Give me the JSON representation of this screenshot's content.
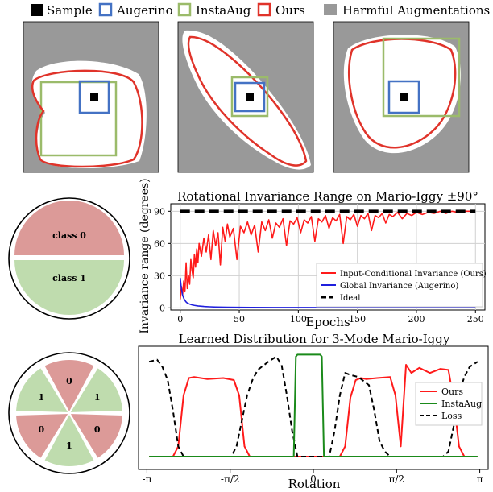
{
  "legend_top": {
    "items": [
      {
        "label": "Sample",
        "color": "#000000",
        "style": "filled-square"
      },
      {
        "label": "Augerino",
        "color": "#4472c4",
        "style": "outline-square"
      },
      {
        "label": "InstaAug",
        "color": "#9bbb6a",
        "style": "outline-square"
      },
      {
        "label": "Ours",
        "color": "#e0332a",
        "style": "outline-square"
      },
      {
        "label": "Harmful Augmentations",
        "color": "#999999",
        "style": "filled-square"
      }
    ]
  },
  "colors": {
    "harmful": "#999999",
    "ours": "#e0332a",
    "augerino": "#4472c4",
    "instaaug": "#9bbb6a",
    "class0": "#dc9a98",
    "class1": "#bfdcae",
    "instaaug_dist": "#1a8a1a",
    "augerino_curve": "#1f1fdd",
    "ours_curve": "#ff1a1a"
  },
  "pie_two_class": {
    "labels": [
      "class 0",
      "class 1"
    ]
  },
  "pie_six_sector": {
    "labels": [
      "0",
      "1",
      "0",
      "1",
      "0",
      "1"
    ]
  },
  "chart_data": [
    {
      "type": "line",
      "title": "Rotational Invariance Range on Mario-Iggy ±90°",
      "xlabel": "Epochs",
      "ylabel": "Invariance range (degrees)",
      "xlim": [
        -8,
        258
      ],
      "ylim": [
        -2,
        97
      ],
      "xticks": [
        0,
        50,
        100,
        150,
        200,
        250
      ],
      "yticks": [
        0,
        30,
        60,
        90
      ],
      "grid": true,
      "legend_position": "bottom-right",
      "series": [
        {
          "name": "Input-Conditional Invariance (Ours)",
          "color": "#ff1a1a",
          "x": [
            0,
            1,
            2,
            3,
            4,
            5,
            6,
            7,
            8,
            9,
            10,
            11,
            12,
            13,
            14,
            15,
            16,
            18,
            20,
            22,
            24,
            26,
            28,
            30,
            32,
            34,
            36,
            38,
            40,
            42,
            45,
            48,
            51,
            54,
            57,
            60,
            63,
            66,
            69,
            72,
            75,
            78,
            81,
            84,
            87,
            90,
            93,
            96,
            99,
            102,
            105,
            108,
            111,
            114,
            117,
            120,
            123,
            126,
            129,
            132,
            135,
            138,
            141,
            144,
            147,
            150,
            153,
            156,
            159,
            162,
            165,
            168,
            171,
            174,
            177,
            180,
            184,
            188,
            192,
            196,
            200,
            205,
            210,
            215,
            220,
            225,
            230,
            235,
            240,
            245,
            249
          ],
          "values": [
            8,
            20,
            12,
            25,
            15,
            42,
            18,
            30,
            22,
            45,
            35,
            28,
            50,
            38,
            55,
            42,
            60,
            48,
            65,
            52,
            68,
            45,
            72,
            58,
            70,
            40,
            75,
            62,
            78,
            66,
            74,
            45,
            76,
            70,
            80,
            68,
            77,
            52,
            80,
            72,
            82,
            65,
            79,
            75,
            83,
            58,
            81,
            78,
            84,
            70,
            82,
            79,
            85,
            62,
            83,
            80,
            86,
            74,
            84,
            81,
            87,
            60,
            85,
            82,
            87,
            76,
            86,
            83,
            88,
            72,
            86,
            84,
            88,
            79,
            87,
            85,
            89,
            83,
            88,
            86,
            89,
            87,
            89,
            88,
            90,
            88,
            90,
            89,
            90,
            90,
            90
          ]
        },
        {
          "name": "Global Invariance (Augerino)",
          "color": "#1f1fdd",
          "x": [
            0,
            1,
            2,
            3,
            4,
            5,
            6,
            8,
            10,
            12,
            15,
            20,
            25,
            30,
            40,
            50,
            60,
            80,
            100,
            150,
            200,
            250
          ],
          "values": [
            28,
            18,
            12,
            9,
            7,
            5.5,
            4.5,
            3.5,
            2.8,
            2.3,
            1.8,
            1.3,
            1.0,
            0.8,
            0.6,
            0.5,
            0.4,
            0.3,
            0.3,
            0.2,
            0.2,
            0.2
          ]
        },
        {
          "name": "Ideal",
          "color": "#000000",
          "dashed": true,
          "x": [
            0,
            250
          ],
          "values": [
            90,
            90
          ]
        }
      ]
    },
    {
      "type": "line",
      "title": "Learned Distribution for 3-Mode Mario-Iggy",
      "xlabel": "Rotation",
      "ylabel": "",
      "xlim": [
        -3.3,
        3.3
      ],
      "ylim": [
        0,
        1.05
      ],
      "xticks": [
        -3.14159,
        -1.5708,
        0,
        1.5708,
        3.14159
      ],
      "xtick_labels": [
        "-π",
        "-π/2",
        "0",
        "π/2",
        "π"
      ],
      "legend_position": "right",
      "series": [
        {
          "name": "Ours",
          "color": "#ff1a1a",
          "x": [
            -3.1,
            -2.65,
            -2.55,
            -2.45,
            -2.35,
            -2.25,
            -2.0,
            -1.7,
            -1.5,
            -1.4,
            -1.3,
            -1.2,
            -1.1,
            -1.0,
            0.0,
            0.0,
            0.0,
            0.3,
            0.5,
            0.6,
            0.7,
            0.8,
            0.9,
            1.0,
            1.2,
            1.45,
            1.55,
            1.65,
            1.75,
            1.85,
            2.0,
            2.2,
            2.4,
            2.55,
            2.65,
            2.75,
            2.85,
            3.1
          ],
          "values": [
            0.0,
            0.0,
            0.1,
            0.6,
            0.77,
            0.78,
            0.76,
            0.77,
            0.75,
            0.6,
            0.1,
            0.0,
            0.0,
            0.0,
            0.0,
            0.0,
            0.0,
            0.0,
            0.0,
            0.1,
            0.58,
            0.75,
            0.77,
            0.76,
            0.77,
            0.78,
            0.6,
            0.1,
            0.9,
            0.82,
            0.87,
            0.82,
            0.86,
            0.85,
            0.55,
            0.1,
            0.0,
            0.0
          ]
        },
        {
          "name": "InstaAug",
          "color": "#1a8a1a",
          "x": [
            -3.1,
            -0.35,
            -0.3,
            -0.25,
            0.15,
            0.2,
            0.25,
            3.1
          ],
          "values": [
            0.0,
            0.0,
            1.0,
            1.0,
            1.0,
            1.0,
            0.0,
            0.0
          ],
          "raw_x": [
            -3.1,
            -0.37,
            -0.33,
            -0.3,
            0.13,
            0.16,
            0.2,
            3.1
          ],
          "raw_values": [
            0.0,
            0.0,
            0.98,
            1.0,
            1.0,
            0.98,
            0.0,
            0.0
          ]
        },
        {
          "name": "Loss",
          "color": "#000000",
          "dashed": true,
          "x": [
            -3.1,
            -2.95,
            -2.85,
            -2.75,
            -2.65,
            -2.55,
            -2.45,
            -1.55,
            -1.45,
            -1.35,
            -1.25,
            -1.15,
            -1.05,
            -0.85,
            -0.7,
            -0.6,
            -0.5,
            -0.4,
            -0.3,
            0.3,
            0.4,
            0.5,
            0.6,
            0.7,
            0.85,
            1.05,
            1.15,
            1.25,
            1.35,
            1.45,
            1.55,
            2.45,
            2.55,
            2.65,
            2.75,
            2.85,
            2.95,
            3.1
          ],
          "values": [
            0.93,
            0.95,
            0.88,
            0.75,
            0.45,
            0.1,
            0.0,
            0.0,
            0.1,
            0.35,
            0.6,
            0.75,
            0.85,
            0.93,
            0.98,
            0.9,
            0.6,
            0.25,
            0.0,
            0.0,
            0.25,
            0.6,
            0.82,
            0.8,
            0.78,
            0.7,
            0.45,
            0.15,
            0.05,
            0.0,
            0.0,
            0.0,
            0.05,
            0.3,
            0.62,
            0.78,
            0.88,
            0.93
          ]
        }
      ]
    }
  ]
}
